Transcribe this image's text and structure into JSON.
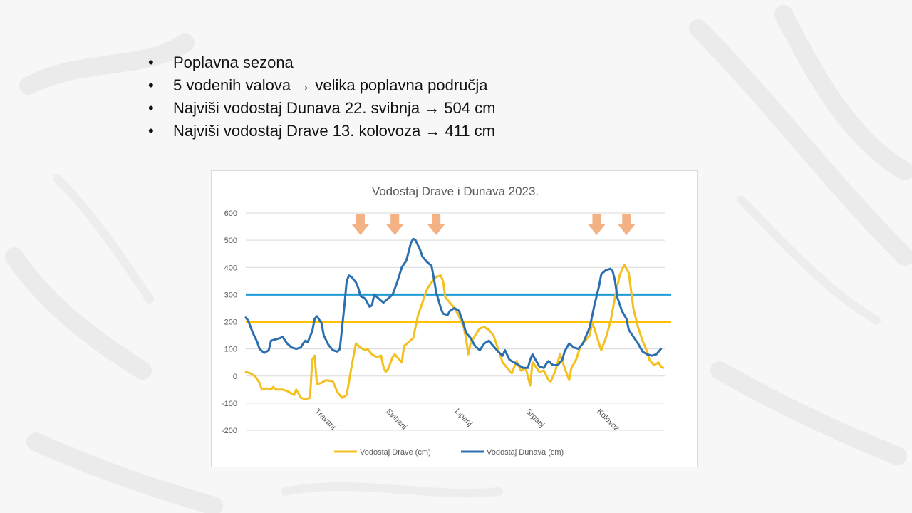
{
  "bullets": [
    "Poplavna sezona",
    "5 vodenih valova → velika poplavna područja",
    "Najviši vodostaj Dunava 22. svibnja → 504 cm",
    "Najviši vodostaj Drave 13. kolovoza → 411 cm"
  ],
  "bullet_symbol": "•",
  "chart_data": {
    "type": "line",
    "title": "Vodostaj Drave i Dunava 2023.",
    "ylim": [
      -200,
      600
    ],
    "yticks": [
      -200,
      -100,
      0,
      100,
      200,
      300,
      400,
      500,
      600
    ],
    "month_labels": [
      "Travanj",
      "Svibanj",
      "Lipanj",
      "Srpanj",
      "Kolovoz"
    ],
    "month_positions_day": [
      30,
      61,
      91,
      122,
      153
    ],
    "days": 184,
    "thresholds": [
      {
        "value": 300,
        "color": "#1f9bd7"
      },
      {
        "value": 200,
        "color": "#ffc000"
      }
    ],
    "peak_marker_days": [
      50,
      65,
      83,
      153,
      166
    ],
    "series": [
      {
        "name": "Vodostaj Drave (cm)",
        "color": "#f3c01f",
        "points": [
          [
            0,
            15
          ],
          [
            2,
            10
          ],
          [
            4,
            0
          ],
          [
            6,
            -25
          ],
          [
            7,
            -50
          ],
          [
            9,
            -45
          ],
          [
            11,
            -50
          ],
          [
            12,
            -40
          ],
          [
            13,
            -50
          ],
          [
            16,
            -50
          ],
          [
            18,
            -55
          ],
          [
            19,
            -60
          ],
          [
            21,
            -70
          ],
          [
            22,
            -50
          ],
          [
            24,
            -80
          ],
          [
            26,
            -85
          ],
          [
            28,
            -80
          ],
          [
            29,
            60
          ],
          [
            30,
            75
          ],
          [
            31,
            -30
          ],
          [
            33,
            -25
          ],
          [
            35,
            -15
          ],
          [
            38,
            -20
          ],
          [
            40,
            -60
          ],
          [
            42,
            -80
          ],
          [
            44,
            -70
          ],
          [
            46,
            30
          ],
          [
            48,
            120
          ],
          [
            50,
            105
          ],
          [
            52,
            95
          ],
          [
            53,
            100
          ],
          [
            55,
            80
          ],
          [
            57,
            70
          ],
          [
            59,
            75
          ],
          [
            60,
            35
          ],
          [
            61,
            15
          ],
          [
            62,
            25
          ],
          [
            64,
            70
          ],
          [
            65,
            80
          ],
          [
            67,
            60
          ],
          [
            68,
            50
          ],
          [
            69,
            110
          ],
          [
            71,
            125
          ],
          [
            73,
            140
          ],
          [
            75,
            220
          ],
          [
            77,
            270
          ],
          [
            79,
            320
          ],
          [
            81,
            345
          ],
          [
            83,
            365
          ],
          [
            85,
            370
          ],
          [
            86,
            350
          ],
          [
            87,
            290
          ],
          [
            89,
            270
          ],
          [
            91,
            250
          ],
          [
            93,
            220
          ],
          [
            95,
            180
          ],
          [
            96,
            140
          ],
          [
            97,
            80
          ],
          [
            98,
            120
          ],
          [
            100,
            150
          ],
          [
            102,
            175
          ],
          [
            104,
            180
          ],
          [
            106,
            170
          ],
          [
            108,
            150
          ],
          [
            110,
            100
          ],
          [
            112,
            50
          ],
          [
            114,
            30
          ],
          [
            116,
            10
          ],
          [
            118,
            55
          ],
          [
            120,
            20
          ],
          [
            122,
            30
          ],
          [
            124,
            -35
          ],
          [
            125,
            50
          ],
          [
            126,
            40
          ],
          [
            128,
            15
          ],
          [
            130,
            20
          ],
          [
            132,
            -15
          ],
          [
            133,
            -20
          ],
          [
            135,
            20
          ],
          [
            137,
            80
          ],
          [
            139,
            30
          ],
          [
            141,
            -15
          ],
          [
            142,
            30
          ],
          [
            144,
            60
          ],
          [
            146,
            110
          ],
          [
            148,
            130
          ],
          [
            150,
            150
          ],
          [
            151,
            195
          ],
          [
            152,
            175
          ],
          [
            154,
            120
          ],
          [
            155,
            95
          ],
          [
            157,
            140
          ],
          [
            159,
            200
          ],
          [
            161,
            290
          ],
          [
            163,
            370
          ],
          [
            165,
            410
          ],
          [
            167,
            380
          ],
          [
            169,
            250
          ],
          [
            171,
            180
          ],
          [
            173,
            130
          ],
          [
            175,
            90
          ],
          [
            176,
            60
          ],
          [
            178,
            40
          ],
          [
            180,
            50
          ],
          [
            181,
            35
          ],
          [
            182,
            30
          ]
        ]
      },
      {
        "name": "Vodostaj Dunava (cm)",
        "color": "#2b6fb0",
        "points": [
          [
            0,
            215
          ],
          [
            1,
            205
          ],
          [
            3,
            160
          ],
          [
            5,
            125
          ],
          [
            6,
            100
          ],
          [
            8,
            85
          ],
          [
            10,
            95
          ],
          [
            11,
            130
          ],
          [
            13,
            135
          ],
          [
            15,
            140
          ],
          [
            16,
            145
          ],
          [
            18,
            120
          ],
          [
            20,
            105
          ],
          [
            22,
            100
          ],
          [
            24,
            105
          ],
          [
            25,
            120
          ],
          [
            26,
            130
          ],
          [
            27,
            125
          ],
          [
            29,
            165
          ],
          [
            30,
            210
          ],
          [
            31,
            220
          ],
          [
            33,
            195
          ],
          [
            34,
            150
          ],
          [
            36,
            115
          ],
          [
            38,
            95
          ],
          [
            40,
            90
          ],
          [
            41,
            100
          ],
          [
            43,
            260
          ],
          [
            44,
            350
          ],
          [
            45,
            370
          ],
          [
            46,
            365
          ],
          [
            48,
            345
          ],
          [
            49,
            325
          ],
          [
            50,
            295
          ],
          [
            52,
            285
          ],
          [
            54,
            255
          ],
          [
            55,
            260
          ],
          [
            56,
            300
          ],
          [
            58,
            285
          ],
          [
            60,
            270
          ],
          [
            62,
            285
          ],
          [
            64,
            300
          ],
          [
            66,
            345
          ],
          [
            68,
            400
          ],
          [
            70,
            425
          ],
          [
            72,
            490
          ],
          [
            73,
            505
          ],
          [
            74,
            500
          ],
          [
            76,
            465
          ],
          [
            77,
            440
          ],
          [
            79,
            420
          ],
          [
            81,
            405
          ],
          [
            82,
            360
          ],
          [
            83,
            310
          ],
          [
            85,
            250
          ],
          [
            86,
            230
          ],
          [
            88,
            225
          ],
          [
            89,
            240
          ],
          [
            91,
            250
          ],
          [
            93,
            240
          ],
          [
            95,
            190
          ],
          [
            96,
            160
          ],
          [
            98,
            140
          ],
          [
            100,
            110
          ],
          [
            102,
            95
          ],
          [
            104,
            120
          ],
          [
            106,
            130
          ],
          [
            108,
            110
          ],
          [
            110,
            90
          ],
          [
            112,
            75
          ],
          [
            113,
            95
          ],
          [
            115,
            60
          ],
          [
            117,
            50
          ],
          [
            119,
            40
          ],
          [
            121,
            30
          ],
          [
            123,
            30
          ],
          [
            124,
            60
          ],
          [
            125,
            80
          ],
          [
            127,
            50
          ],
          [
            128,
            35
          ],
          [
            130,
            30
          ],
          [
            131,
            45
          ],
          [
            132,
            55
          ],
          [
            134,
            40
          ],
          [
            136,
            40
          ],
          [
            138,
            60
          ],
          [
            139,
            90
          ],
          [
            141,
            120
          ],
          [
            143,
            105
          ],
          [
            145,
            100
          ],
          [
            147,
            120
          ],
          [
            149,
            160
          ],
          [
            150,
            180
          ],
          [
            152,
            260
          ],
          [
            154,
            330
          ],
          [
            155,
            375
          ],
          [
            157,
            390
          ],
          [
            159,
            395
          ],
          [
            160,
            385
          ],
          [
            161,
            350
          ],
          [
            162,
            290
          ],
          [
            164,
            240
          ],
          [
            166,
            210
          ],
          [
            167,
            170
          ],
          [
            169,
            145
          ],
          [
            171,
            120
          ],
          [
            173,
            90
          ],
          [
            175,
            80
          ],
          [
            177,
            75
          ],
          [
            179,
            80
          ],
          [
            181,
            100
          ]
        ]
      }
    ]
  }
}
